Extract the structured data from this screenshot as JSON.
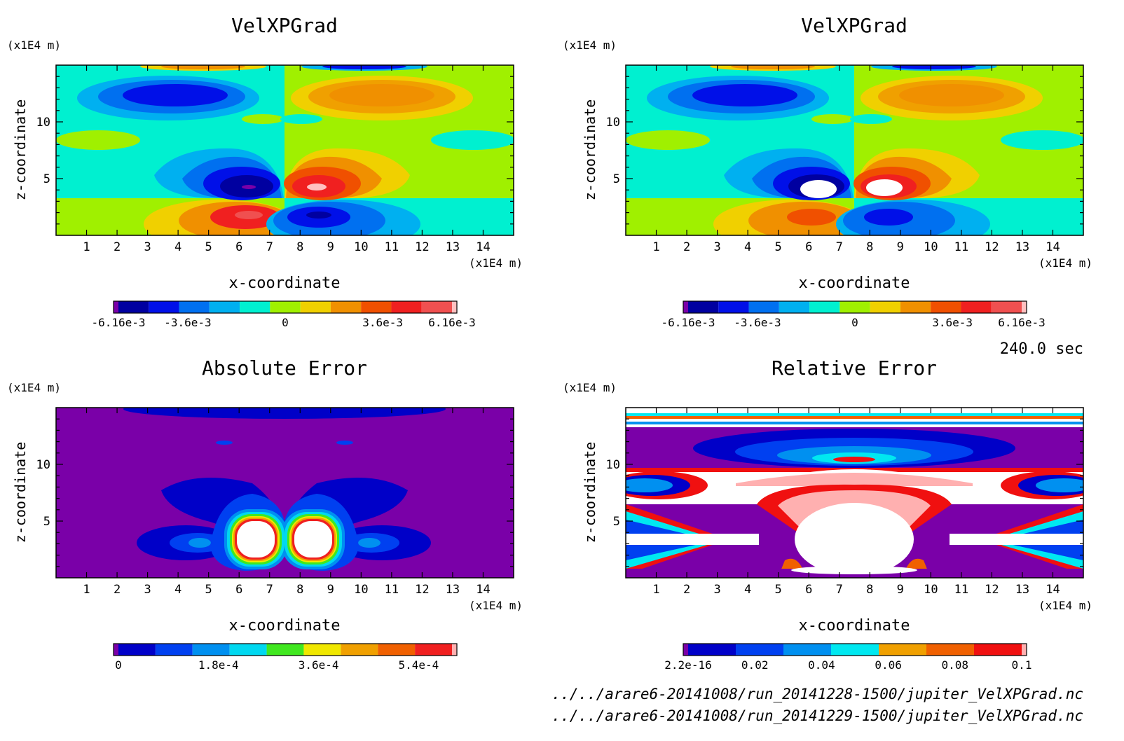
{
  "panels": [
    {
      "title": "VelXPGrad",
      "zunit": "(x1E4 m)",
      "xunit": "(x1E4 m)",
      "xlabel": "x-coordinate",
      "ylabel": "z-coordinate",
      "xticks": [
        "1",
        "2",
        "3",
        "4",
        "5",
        "6",
        "7",
        "8",
        "9",
        "10",
        "11",
        "12",
        "13",
        "14"
      ],
      "yticks": [
        "5",
        "10"
      ],
      "colorbar_labels": [
        "-6.16e-3",
        "-3.6e-3",
        "0",
        "3.6e-3",
        "6.16e-3"
      ]
    },
    {
      "title": "VelXPGrad",
      "zunit": "(x1E4 m)",
      "xunit": "(x1E4 m)",
      "xlabel": "x-coordinate",
      "ylabel": "z-coordinate",
      "xticks": [
        "1",
        "2",
        "3",
        "4",
        "5",
        "6",
        "7",
        "8",
        "9",
        "10",
        "11",
        "12",
        "13",
        "14"
      ],
      "yticks": [
        "5",
        "10"
      ],
      "colorbar_labels": [
        "-6.16e-3",
        "-3.6e-3",
        "0",
        "3.6e-3",
        "6.16e-3"
      ]
    },
    {
      "title": "Absolute Error",
      "zunit": "(x1E4 m)",
      "xunit": "(x1E4 m)",
      "xlabel": "x-coordinate",
      "ylabel": "z-coordinate",
      "xticks": [
        "1",
        "2",
        "3",
        "4",
        "5",
        "6",
        "7",
        "8",
        "9",
        "10",
        "11",
        "12",
        "13",
        "14"
      ],
      "yticks": [
        "5",
        "10"
      ],
      "colorbar_labels": [
        "0",
        "1.8e-4",
        "3.6e-4",
        "5.4e-4"
      ]
    },
    {
      "title": "Relative Error",
      "zunit": "(x1E4 m)",
      "xunit": "(x1E4 m)",
      "xlabel": "x-coordinate",
      "ylabel": "z-coordinate",
      "xticks": [
        "1",
        "2",
        "3",
        "4",
        "5",
        "6",
        "7",
        "8",
        "9",
        "10",
        "11",
        "12",
        "13",
        "14"
      ],
      "yticks": [
        "5",
        "10"
      ],
      "colorbar_labels": [
        "2.2e-16",
        "0.02",
        "0.04",
        "0.06",
        "0.08",
        "0.1"
      ]
    }
  ],
  "time_label": "240.0 sec",
  "file_paths": [
    "../../arare6-20141008/run_20141228-1500/jupiter_VelXPGrad.nc",
    "../../arare6-20141008/run_20141229-1500/jupiter_VelXPGrad.nc"
  ],
  "colors": {
    "velocity_scale": [
      "#7a00a8",
      "#0000a0",
      "#0010e8",
      "#0070f0",
      "#00b0f0",
      "#00f0d0",
      "#a0f000",
      "#f0d000",
      "#f09000",
      "#f05000",
      "#f02020",
      "#f05050",
      "#ffc0c0"
    ],
    "abs_scale": [
      "#7a00a8",
      "#0000c8",
      "#0040f0",
      "#0090f0",
      "#00d8f0",
      "#40e820",
      "#f0e800",
      "#f0a000",
      "#f06000",
      "#f02020",
      "#ffb0b0"
    ],
    "rel_scale": [
      "#7a00a8",
      "#0000c8",
      "#0040f0",
      "#0090f0",
      "#00e8f0",
      "#f0a000",
      "#f06000",
      "#f01010",
      "#ffb0b0"
    ]
  },
  "chart_data": [
    {
      "type": "heatmap",
      "title": "VelXPGrad",
      "xlabel": "x-coordinate",
      "ylabel": "z-coordinate",
      "xlim": [
        0,
        15
      ],
      "ylim": [
        0,
        15
      ],
      "colorbar": {
        "min": -0.00616,
        "max": 0.00616,
        "labels": [
          -0.00616,
          -0.0036,
          0,
          0.0036,
          0.00616
        ]
      }
    },
    {
      "type": "heatmap",
      "title": "VelXPGrad",
      "xlabel": "x-coordinate",
      "ylabel": "z-coordinate",
      "xlim": [
        0,
        15
      ],
      "ylim": [
        0,
        15
      ],
      "colorbar": {
        "min": -0.00616,
        "max": 0.00616,
        "labels": [
          -0.00616,
          -0.0036,
          0,
          0.0036,
          0.00616
        ]
      }
    },
    {
      "type": "heatmap",
      "title": "Absolute Error",
      "xlabel": "x-coordinate",
      "ylabel": "z-coordinate",
      "xlim": [
        0,
        15
      ],
      "ylim": [
        0,
        15
      ],
      "colorbar": {
        "min": 0,
        "max": 0.0006,
        "labels": [
          0,
          0.00018,
          0.00036,
          0.00054
        ]
      }
    },
    {
      "type": "heatmap",
      "title": "Relative Error",
      "xlabel": "x-coordinate",
      "ylabel": "z-coordinate",
      "xlim": [
        0,
        15
      ],
      "ylim": [
        0,
        15
      ],
      "colorbar": {
        "min": 2.2e-16,
        "max": 0.1,
        "labels": [
          2.2e-16,
          0.02,
          0.04,
          0.06,
          0.08,
          0.1
        ]
      }
    }
  ]
}
